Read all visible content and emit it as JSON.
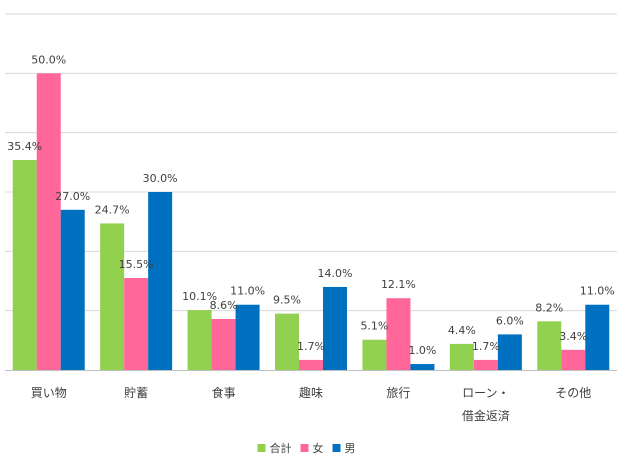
{
  "chart_data": {
    "type": "bar",
    "title": "",
    "xlabel": "",
    "ylabel": "",
    "ylim": [
      0,
      60
    ],
    "grid": true,
    "legend_position": "bottom",
    "categories": [
      [
        "買い物"
      ],
      [
        "貯蓄"
      ],
      [
        "食事"
      ],
      [
        "趣味"
      ],
      [
        "旅行"
      ],
      [
        "ローン・",
        "借金返済"
      ],
      [
        "その他"
      ]
    ],
    "series": [
      {
        "name": "合計",
        "color": "#92d050",
        "values": [
          35.4,
          24.7,
          10.1,
          9.5,
          5.1,
          4.4,
          8.2
        ],
        "labels": [
          "35.4%",
          "24.7%",
          "10.1%",
          "9.5%",
          "5.1%",
          "4.4%",
          "8.2%"
        ]
      },
      {
        "name": "女",
        "color": "#ff6699",
        "values": [
          50.0,
          15.5,
          8.6,
          1.7,
          12.1,
          1.7,
          3.4
        ],
        "labels": [
          "50.0%",
          "15.5%",
          "8.6%",
          "1.7%",
          "12.1%",
          "1.7%",
          "3.4%"
        ]
      },
      {
        "name": "男",
        "color": "#0070c0",
        "values": [
          27.0,
          30.0,
          11.0,
          14.0,
          1.0,
          6.0,
          11.0
        ],
        "labels": [
          "27.0%",
          "30.0%",
          "11.0%",
          "14.0%",
          "1.0%",
          "6.0%",
          "11.0%"
        ]
      }
    ]
  }
}
